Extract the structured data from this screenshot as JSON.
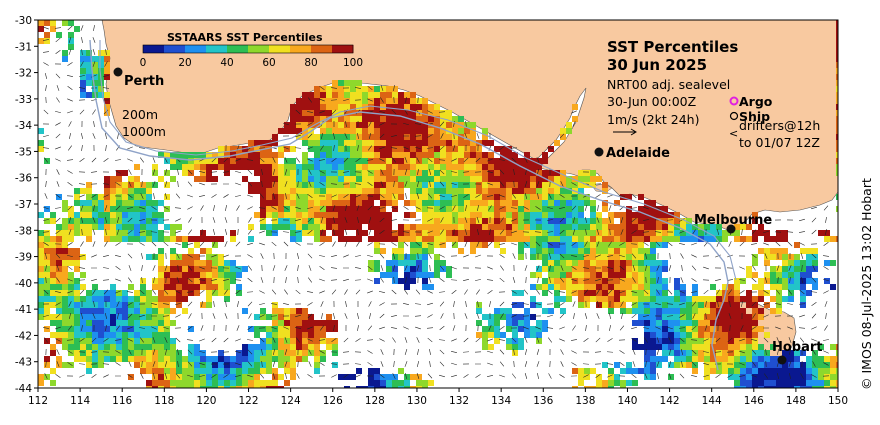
{
  "map": {
    "lon_range": [
      112,
      150
    ],
    "lat_range": [
      -44,
      -30
    ],
    "lon_ticks": [
      "112",
      "114",
      "116",
      "118",
      "120",
      "122",
      "124",
      "126",
      "128",
      "130",
      "132",
      "134",
      "136",
      "138",
      "140",
      "142",
      "144",
      "146",
      "148",
      "150"
    ],
    "lat_ticks": [
      "-30",
      "-31",
      "-32",
      "-33",
      "-34",
      "-35",
      "-36",
      "-37",
      "-38",
      "-39",
      "-40",
      "-41",
      "-42",
      "-43",
      "-44"
    ],
    "colors": {
      "land": "#F8C9A0",
      "ocean_nodata": "#FFFFFF"
    }
  },
  "colorbar": {
    "title": "SSTAARS SST Percentiles",
    "ticks": [
      "0",
      "20",
      "40",
      "60",
      "80",
      "100"
    ],
    "colors": [
      "#0A1890",
      "#1F4FD0",
      "#1E90F0",
      "#22C4C8",
      "#2DBE54",
      "#8ED82C",
      "#F0E020",
      "#F8A81E",
      "#DC6414",
      "#A01010"
    ]
  },
  "title": {
    "line1": "SST Percentiles",
    "line2": "30 Jun 2025"
  },
  "info": {
    "product": "NRT00 adj. sealevel",
    "time": "30-Jun 00:00Z",
    "scale": "1m/s (2kt 24h)"
  },
  "legend": {
    "argo": "Argo",
    "ship": "Ship",
    "drifters": "drifters@12h",
    "drifters_to": "to 01/07 12Z",
    "argo_color": "#E020E0",
    "drifter_color": "#E020E0"
  },
  "bathymetry": {
    "label1": "200m",
    "label2": "1000m"
  },
  "cities": [
    {
      "name": "Perth",
      "lon": 115.86,
      "lat": -31.95
    },
    {
      "name": "Adelaide",
      "lon": 138.6,
      "lat": -34.93
    },
    {
      "name": "Melbourne",
      "lon": 144.96,
      "lat": -37.81
    },
    {
      "name": "Hobart",
      "lon": 147.33,
      "lat": -42.88
    }
  ],
  "credit": "© IMOS 08-Jul-2025 13:02 Hobart"
}
